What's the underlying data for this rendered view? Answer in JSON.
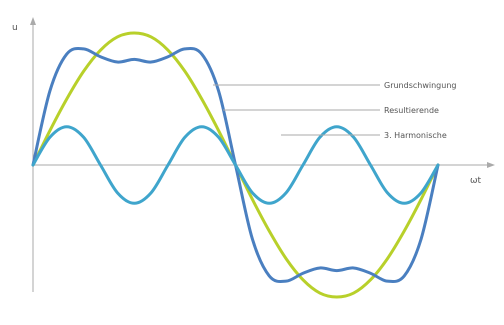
{
  "chart_data": {
    "type": "line",
    "title": "",
    "xlabel": "ωt",
    "ylabel": "u",
    "xlim": [
      0,
      360
    ],
    "ylim": [
      -1.15,
      1.15
    ],
    "grid": false,
    "legend_position": "right",
    "x_unit": "degrees",
    "series": [
      {
        "name": "Grundschwingung",
        "color": "#b8d02a",
        "x": [
          0,
          15,
          30,
          45,
          60,
          75,
          90,
          105,
          120,
          135,
          150,
          165,
          180,
          195,
          210,
          225,
          240,
          255,
          270,
          285,
          300,
          315,
          330,
          345,
          360
        ],
        "values": [
          0,
          0.26,
          0.5,
          0.71,
          0.87,
          0.97,
          1,
          0.97,
          0.87,
          0.71,
          0.5,
          0.26,
          0,
          -0.26,
          -0.5,
          -0.71,
          -0.87,
          -0.97,
          -1,
          -0.97,
          -0.87,
          -0.71,
          -0.5,
          -0.26,
          0
        ]
      },
      {
        "name": "Resultierende",
        "color": "#4a7fc0",
        "x": [
          0,
          15,
          30,
          45,
          60,
          75,
          90,
          105,
          120,
          135,
          150,
          165,
          180,
          195,
          210,
          225,
          240,
          255,
          270,
          285,
          300,
          315,
          330,
          345,
          360
        ],
        "values": [
          0,
          0.56,
          0.84,
          0.88,
          0.82,
          0.78,
          0.8,
          0.78,
          0.82,
          0.88,
          0.84,
          0.56,
          0,
          -0.56,
          -0.84,
          -0.88,
          -0.82,
          -0.78,
          -0.8,
          -0.78,
          -0.82,
          -0.88,
          -0.84,
          -0.56,
          0
        ]
      },
      {
        "name": "3. Harmonische",
        "color": "#3fa5cc",
        "x": [
          0,
          15,
          30,
          45,
          60,
          75,
          90,
          105,
          120,
          135,
          150,
          165,
          180,
          195,
          210,
          225,
          240,
          255,
          270,
          285,
          300,
          315,
          330,
          345,
          360
        ],
        "values": [
          0,
          0.21,
          0.29,
          0.21,
          0,
          -0.21,
          -0.29,
          -0.21,
          0,
          0.21,
          0.29,
          0.21,
          0,
          -0.21,
          -0.29,
          -0.21,
          0,
          0.21,
          0.29,
          0.21,
          0,
          -0.21,
          -0.29,
          -0.21,
          0
        ]
      }
    ]
  }
}
